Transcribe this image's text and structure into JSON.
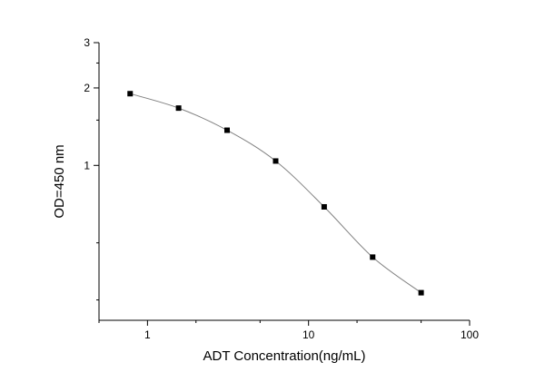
{
  "chart_data": {
    "type": "scatter",
    "title": "",
    "xlabel": "ADT Concentration(ng/mL)",
    "ylabel": "OD=450 nm",
    "x_scale": "log",
    "y_scale": "log",
    "xlim": [
      0.5,
      100
    ],
    "ylim": [
      0.25,
      3
    ],
    "x_tick_labels": [
      "1",
      "10",
      "100"
    ],
    "y_tick_labels": [
      "1",
      "2",
      "3"
    ],
    "grid": false,
    "legend": "none",
    "series": [
      {
        "x": [
          0.78,
          1.56,
          3.12,
          6.25,
          12.5,
          25,
          50
        ],
        "y": [
          1.9,
          1.67,
          1.37,
          1.04,
          0.69,
          0.44,
          0.32
        ]
      }
    ],
    "marker_color": "#000000",
    "line_color": "#808080"
  }
}
